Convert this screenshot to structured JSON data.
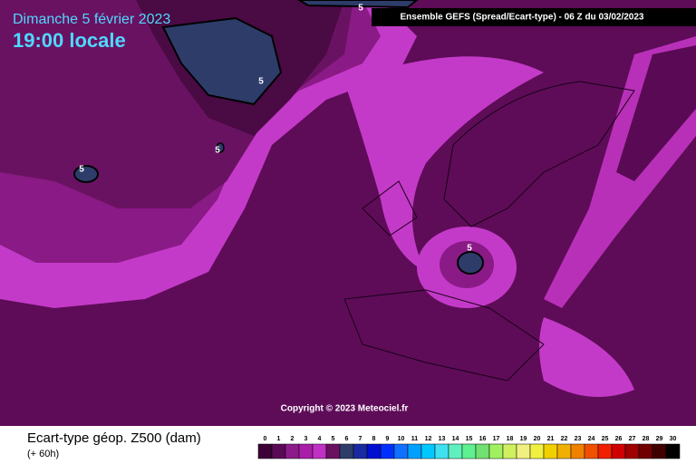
{
  "header": {
    "date": "Dimanche 5 février 2023",
    "time": "19:00 locale",
    "model": "Ensemble GEFS  (Spread/Ecart-type) - 06 Z du 03/02/2023"
  },
  "copyright": "Copyright © 2023 Meteociel.fr",
  "contour_labels": [
    "5",
    "5",
    "5",
    "5",
    "5"
  ],
  "legend": {
    "title": "Ecart-type géop. Z500 (dam)",
    "lead": "(+ 60h)",
    "ticks": [
      0,
      1,
      2,
      3,
      4,
      5,
      6,
      7,
      8,
      9,
      10,
      11,
      12,
      13,
      14,
      15,
      16,
      17,
      18,
      19,
      20,
      21,
      22,
      23,
      24,
      25,
      26,
      27,
      28,
      29,
      30
    ],
    "colors": [
      "#3c0036",
      "#5a0a55",
      "#8c1a8a",
      "#a81ea8",
      "#c030c4",
      "#6a1060",
      "#2e3c6a",
      "#1a2aa0",
      "#0010d0",
      "#0030ff",
      "#1070ff",
      "#00a0ff",
      "#00c8ff",
      "#40e0f0",
      "#60f0c0",
      "#60f090",
      "#70e070",
      "#a0f060",
      "#d0f060",
      "#f0f080",
      "#f0f040",
      "#f0d000",
      "#f0b000",
      "#f08000",
      "#f05000",
      "#f02000",
      "#d00000",
      "#a00000",
      "#700000",
      "#400000",
      "#000000"
    ]
  }
}
